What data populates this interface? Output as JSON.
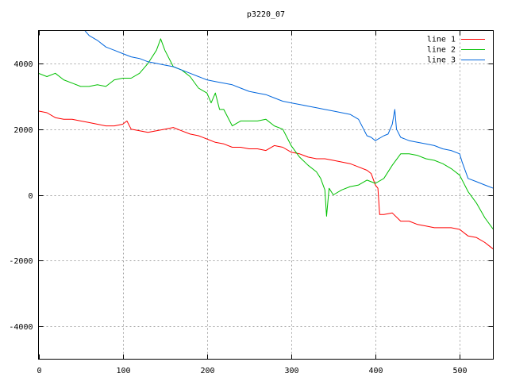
{
  "chart_data": {
    "type": "line",
    "title": "p3220_07",
    "xlabel": "",
    "ylabel": "",
    "xlim": [
      0,
      540
    ],
    "ylim": [
      -5000,
      5000
    ],
    "x_ticks": [
      0,
      100,
      200,
      300,
      400,
      500
    ],
    "y_ticks": [
      -4000,
      -2000,
      0,
      2000,
      4000
    ],
    "grid": true,
    "legend_position": "top-right",
    "series": [
      {
        "name": "line 1",
        "color": "#ff0000",
        "x": [
          0,
          10,
          20,
          30,
          40,
          50,
          60,
          70,
          80,
          90,
          100,
          105,
          110,
          120,
          130,
          140,
          150,
          160,
          170,
          180,
          190,
          200,
          210,
          220,
          230,
          240,
          250,
          260,
          270,
          280,
          290,
          300,
          310,
          320,
          330,
          340,
          350,
          360,
          370,
          380,
          390,
          395,
          400,
          403,
          405,
          410,
          420,
          430,
          440,
          450,
          460,
          470,
          480,
          490,
          500,
          510,
          520,
          530,
          535,
          540
        ],
        "y": [
          2550,
          2500,
          2350,
          2300,
          2300,
          2250,
          2200,
          2150,
          2100,
          2100,
          2150,
          2250,
          2000,
          1950,
          1900,
          1950,
          2000,
          2050,
          1950,
          1850,
          1800,
          1700,
          1600,
          1550,
          1450,
          1450,
          1400,
          1400,
          1350,
          1500,
          1450,
          1300,
          1250,
          1150,
          1100,
          1100,
          1050,
          1000,
          950,
          850,
          750,
          650,
          300,
          200,
          -600,
          -600,
          -550,
          -800,
          -800,
          -900,
          -950,
          -1000,
          -1000,
          -1000,
          -1050,
          -1250,
          -1300,
          -1450,
          -1550,
          -1650
        ]
      },
      {
        "name": "line 2",
        "color": "#00c000",
        "x": [
          0,
          10,
          20,
          30,
          40,
          50,
          60,
          70,
          80,
          90,
          100,
          110,
          120,
          130,
          140,
          145,
          150,
          160,
          170,
          180,
          190,
          200,
          205,
          210,
          215,
          220,
          230,
          240,
          250,
          260,
          270,
          280,
          290,
          295,
          300,
          310,
          320,
          330,
          335,
          340,
          342,
          345,
          350,
          360,
          370,
          380,
          390,
          400,
          410,
          420,
          430,
          440,
          450,
          460,
          470,
          480,
          490,
          500,
          510,
          520,
          530,
          540
        ],
        "y": [
          3700,
          3600,
          3700,
          3500,
          3400,
          3300,
          3300,
          3350,
          3300,
          3500,
          3550,
          3550,
          3700,
          4000,
          4400,
          4750,
          4400,
          3900,
          3800,
          3600,
          3250,
          3100,
          2800,
          3100,
          2600,
          2600,
          2100,
          2250,
          2250,
          2250,
          2300,
          2100,
          2000,
          1750,
          1500,
          1150,
          900,
          700,
          500,
          150,
          -650,
          200,
          0,
          150,
          250,
          300,
          450,
          350,
          500,
          900,
          1250,
          1250,
          1200,
          1100,
          1050,
          950,
          800,
          600,
          100,
          -250,
          -700,
          -1050
        ]
      },
      {
        "name": "line 3",
        "color": "#0066dd",
        "x": [
          55,
          60,
          70,
          80,
          90,
          100,
          110,
          120,
          130,
          140,
          150,
          160,
          170,
          180,
          190,
          200,
          210,
          220,
          230,
          240,
          250,
          260,
          270,
          280,
          290,
          300,
          310,
          320,
          330,
          340,
          350,
          360,
          370,
          380,
          390,
          395,
          400,
          410,
          415,
          420,
          423,
          425,
          430,
          440,
          450,
          460,
          470,
          480,
          490,
          500,
          503,
          510,
          520,
          530,
          540
        ],
        "y": [
          5000,
          4850,
          4700,
          4500,
          4400,
          4300,
          4200,
          4150,
          4050,
          4000,
          3950,
          3900,
          3800,
          3700,
          3600,
          3500,
          3450,
          3400,
          3350,
          3250,
          3150,
          3100,
          3050,
          2950,
          2850,
          2800,
          2750,
          2700,
          2650,
          2600,
          2550,
          2500,
          2450,
          2300,
          1800,
          1750,
          1650,
          1800,
          1850,
          2150,
          2600,
          2000,
          1750,
          1650,
          1600,
          1550,
          1500,
          1400,
          1350,
          1250,
          1000,
          500,
          400,
          300,
          200
        ]
      }
    ]
  }
}
